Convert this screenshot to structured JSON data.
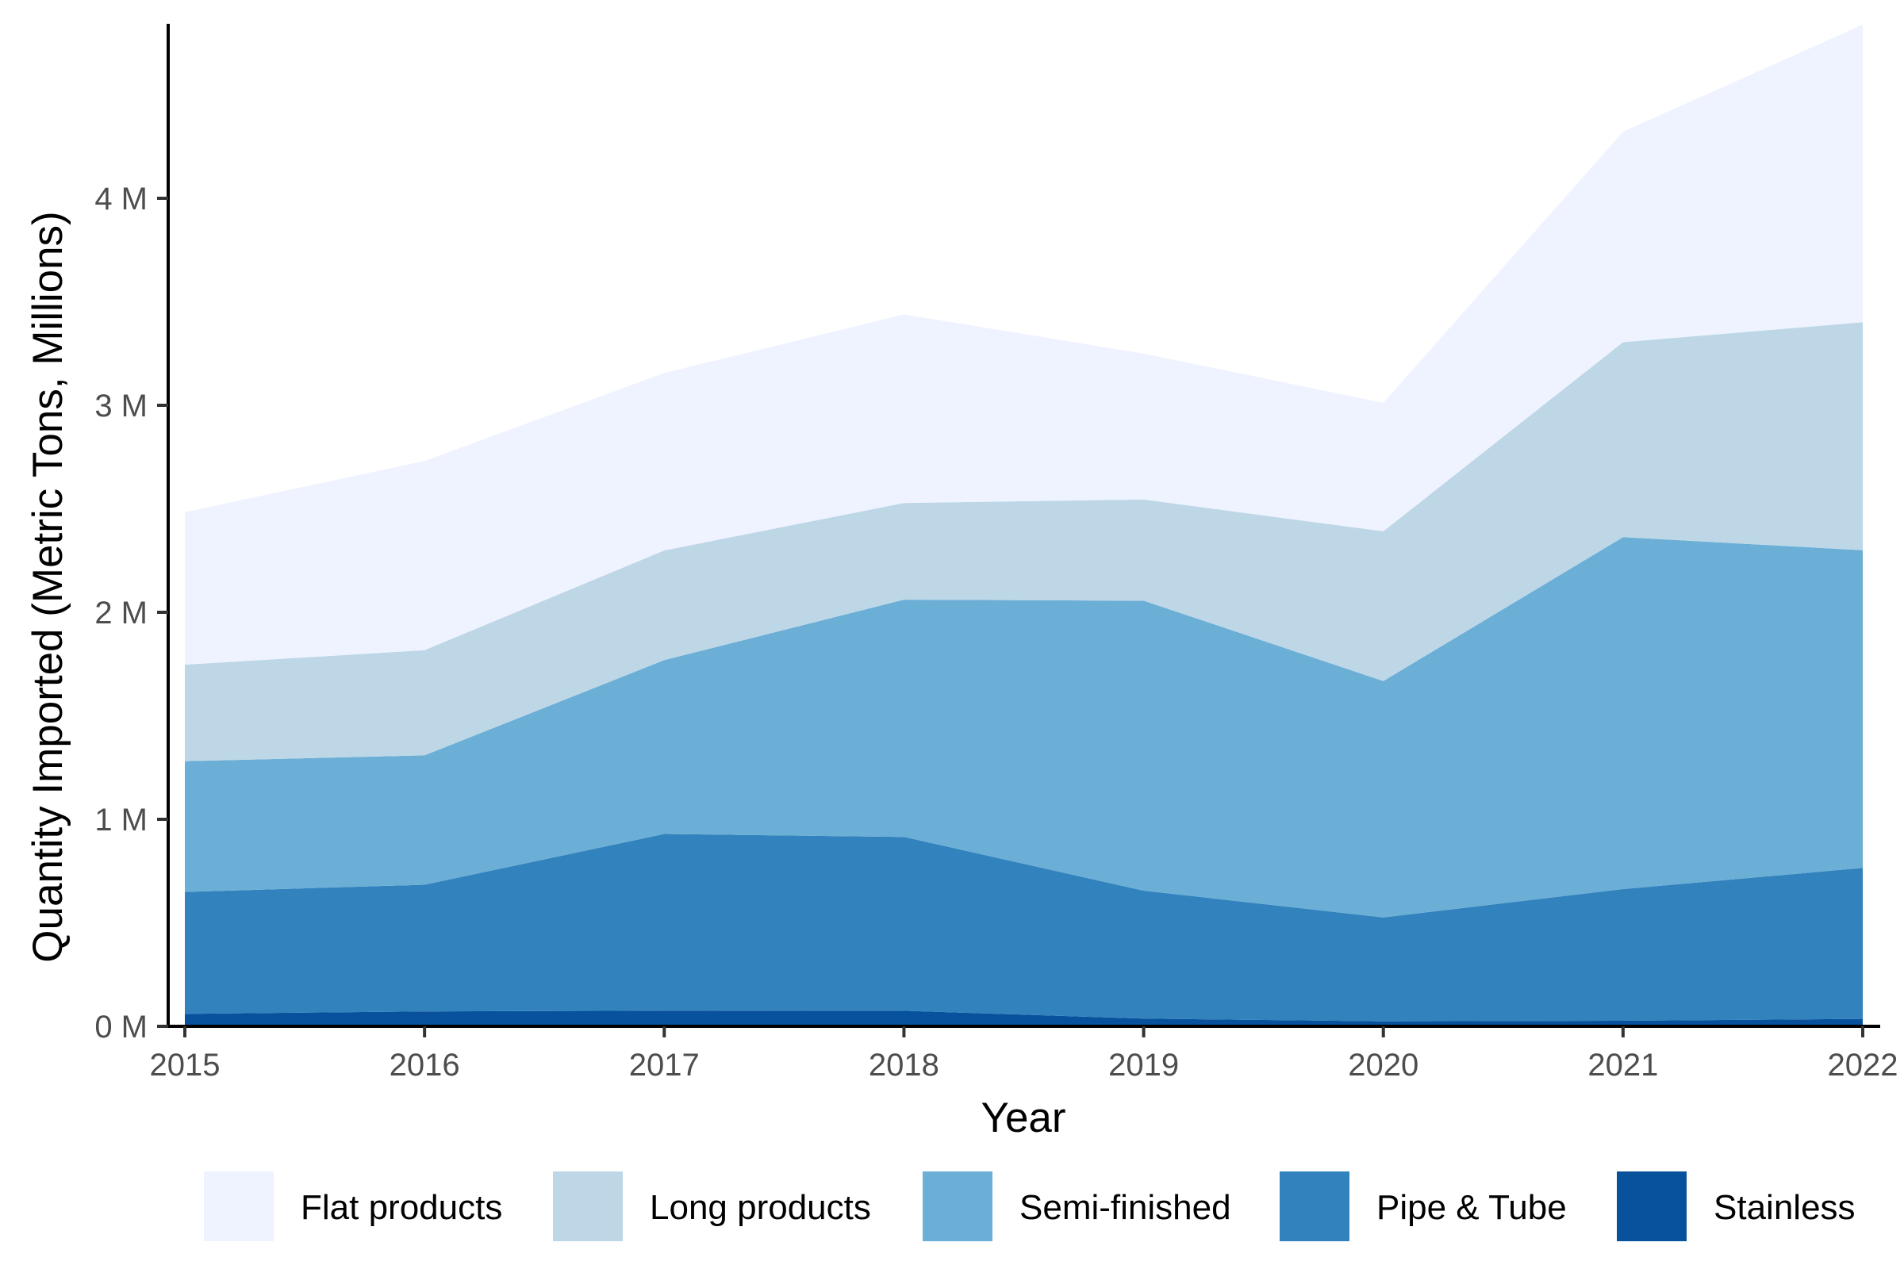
{
  "chart_data": {
    "type": "area",
    "stacked": true,
    "title": "",
    "xlabel": "Year",
    "ylabel": "Quantity Imported (Metric Tons, Millions)",
    "x": [
      2015,
      2016,
      2017,
      2018,
      2019,
      2020,
      2021,
      2022
    ],
    "x_tick_labels": [
      "2015",
      "2016",
      "2017",
      "2018",
      "2019",
      "2020",
      "2021",
      "2022"
    ],
    "y_ticks": [
      0,
      1,
      2,
      3,
      4
    ],
    "y_tick_labels": [
      "0 M",
      "1 M",
      "2 M",
      "3 M",
      "4 M"
    ],
    "ylim": [
      0,
      4.85
    ],
    "units": "million metric tons",
    "grid": false,
    "legend_position": "bottom",
    "stack_order_bottom_to_top": [
      "Stainless",
      "Pipe & Tube",
      "Semi-finished",
      "Long products",
      "Flat products"
    ],
    "series": [
      {
        "name": "Flat products",
        "color": "#EFF3FF",
        "values": [
          0.737,
          0.914,
          0.857,
          0.911,
          0.705,
          0.621,
          1.017,
          1.438
        ]
      },
      {
        "name": "Long products",
        "color": "#BDD7E7",
        "values": [
          0.466,
          0.508,
          0.53,
          0.467,
          0.489,
          0.723,
          0.942,
          1.101
        ]
      },
      {
        "name": "Semi-finished",
        "color": "#6BAED6",
        "values": [
          0.632,
          0.625,
          0.84,
          1.146,
          1.401,
          1.142,
          1.7,
          1.535
        ]
      },
      {
        "name": "Pipe & Tube",
        "color": "#3182BD",
        "values": [
          0.589,
          0.612,
          0.853,
          0.84,
          0.618,
          0.502,
          0.636,
          0.729
        ]
      },
      {
        "name": "Stainless",
        "color": "#08519C",
        "values": [
          0.06,
          0.072,
          0.076,
          0.075,
          0.037,
          0.024,
          0.027,
          0.036
        ]
      }
    ]
  }
}
